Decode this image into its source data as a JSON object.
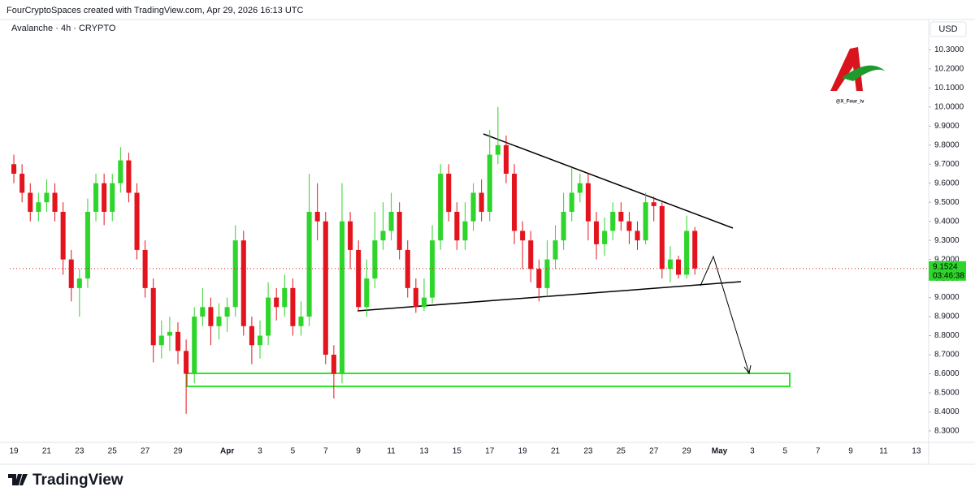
{
  "header": "FourCryptoSpaces created with TradingView.com, Apr 29, 2026 16:13 UTC",
  "watermark": "@X_Four_iv",
  "brand": "TradingView",
  "chart_data": {
    "type": "candlestick",
    "title": "Avalanche · 4h · CRYPTO",
    "currency": "USD",
    "last_price": 9.1524,
    "countdown": "03:46:38",
    "up_color": "#2ed52a",
    "down_color": "#e3141d",
    "grid": false,
    "ylim": [
      8.24,
      10.37
    ],
    "yticks": [
      {
        "value": 8.3,
        "label": "8.3000"
      },
      {
        "value": 8.4,
        "label": "8.4000"
      },
      {
        "value": 8.5,
        "label": "8.5000"
      },
      {
        "value": 8.6,
        "label": "8.6000"
      },
      {
        "value": 8.7,
        "label": "8.7000"
      },
      {
        "value": 8.8,
        "label": "8.8000"
      },
      {
        "value": 8.9,
        "label": "8.9000"
      },
      {
        "value": 9.0,
        "label": "9.0000"
      },
      {
        "value": 9.1,
        "label": "9.1000"
      },
      {
        "value": 9.2,
        "label": "9.2000"
      },
      {
        "value": 9.3,
        "label": "9.3000"
      },
      {
        "value": 9.4,
        "label": "9.4000"
      },
      {
        "value": 9.5,
        "label": "9.5000"
      },
      {
        "value": 9.6,
        "label": "9.6000"
      },
      {
        "value": 9.7,
        "label": "9.7000"
      },
      {
        "value": 9.8,
        "label": "9.8000"
      },
      {
        "value": 9.9,
        "label": "9.9000"
      },
      {
        "value": 10.0,
        "label": "10.0000"
      },
      {
        "value": 10.1,
        "label": "10.1000"
      },
      {
        "value": 10.2,
        "label": "10.2000"
      },
      {
        "value": 10.3,
        "label": "10.3000"
      }
    ],
    "categories": [
      "19",
      null,
      null,
      null,
      "21",
      null,
      null,
      null,
      "23",
      null,
      null,
      null,
      "25",
      null,
      null,
      null,
      "27",
      null,
      null,
      null,
      "29",
      null,
      null,
      null,
      null,
      null,
      "Apr",
      null,
      null,
      null,
      "3",
      null,
      null,
      null,
      "5",
      null,
      null,
      null,
      "7",
      null,
      null,
      null,
      "9",
      null,
      null,
      null,
      "11",
      null,
      null,
      null,
      "13",
      null,
      null,
      null,
      "15",
      null,
      null,
      null,
      "17",
      null,
      null,
      null,
      "19",
      null,
      null,
      null,
      "21",
      null,
      null,
      null,
      "23",
      null,
      null,
      null,
      "25",
      null,
      null,
      null,
      "27",
      null,
      null,
      null,
      "29",
      null,
      null,
      null,
      "May",
      null,
      null,
      null,
      "3",
      null,
      null,
      null,
      "5",
      null,
      null,
      null,
      "7",
      null,
      null,
      null,
      "9",
      null,
      null,
      null,
      "11",
      null,
      null,
      null,
      "13",
      null
    ],
    "open": [
      9.7,
      9.65,
      9.55,
      9.45,
      9.5,
      9.55,
      9.45,
      9.2,
      9.05,
      9.1,
      9.45,
      9.6,
      9.45,
      9.6,
      9.72,
      9.55,
      9.25,
      9.05,
      8.75,
      8.8,
      8.82,
      8.72,
      8.6,
      8.9,
      8.95,
      8.85,
      8.9,
      8.95,
      9.3,
      8.85,
      8.75,
      8.8,
      9.0,
      8.95,
      9.05,
      8.85,
      8.9,
      9.45,
      9.4,
      8.7,
      8.6,
      9.4,
      9.25,
      8.95,
      9.1,
      9.3,
      9.35,
      9.45,
      9.25,
      9.05,
      8.95,
      9.0,
      9.3,
      9.65,
      9.45,
      9.3,
      9.4,
      9.55,
      9.45,
      9.75,
      9.8,
      9.65,
      9.35,
      9.3,
      9.15,
      9.05,
      9.2,
      9.3,
      9.45,
      9.55,
      9.6,
      9.4,
      9.28,
      9.35,
      9.45,
      9.4,
      9.35,
      9.3,
      9.5,
      9.48,
      9.15,
      9.2,
      9.12,
      9.35,
      null,
      null,
      null,
      null,
      null,
      null,
      null,
      null,
      null,
      null,
      null,
      null,
      null,
      null,
      null,
      null,
      null,
      null,
      null,
      null,
      null,
      null,
      null,
      null,
      null,
      null,
      null,
      null
    ],
    "high": [
      9.75,
      9.7,
      9.6,
      9.55,
      9.62,
      9.6,
      9.5,
      9.25,
      9.15,
      9.52,
      9.65,
      9.65,
      9.65,
      9.79,
      9.76,
      9.6,
      9.3,
      9.1,
      8.88,
      8.9,
      8.87,
      8.78,
      8.95,
      9.05,
      9.0,
      8.97,
      9.0,
      9.38,
      9.35,
      8.9,
      8.88,
      9.08,
      9.05,
      9.12,
      9.1,
      8.98,
      9.65,
      9.6,
      9.45,
      8.75,
      9.6,
      9.45,
      9.3,
      9.2,
      9.45,
      9.5,
      9.55,
      9.5,
      9.3,
      9.1,
      9.1,
      9.38,
      9.7,
      9.7,
      9.5,
      9.5,
      9.6,
      9.62,
      9.88,
      10.0,
      9.85,
      9.7,
      9.4,
      9.35,
      9.2,
      9.3,
      9.38,
      9.55,
      9.68,
      9.65,
      9.65,
      9.45,
      9.42,
      9.5,
      9.5,
      9.45,
      9.4,
      9.55,
      9.53,
      9.5,
      9.27,
      9.22,
      9.43,
      9.37,
      null,
      null,
      null,
      null,
      null,
      null,
      null,
      null,
      null,
      null,
      null,
      null,
      null,
      null,
      null,
      null,
      null,
      null,
      null,
      null,
      null,
      null,
      null,
      null,
      null,
      null,
      null,
      null
    ],
    "low": [
      9.6,
      9.5,
      9.4,
      9.4,
      9.45,
      9.4,
      9.12,
      8.98,
      8.9,
      9.05,
      9.4,
      9.38,
      9.4,
      9.55,
      9.5,
      9.2,
      9.0,
      8.66,
      8.68,
      8.72,
      8.65,
      8.39,
      8.55,
      8.85,
      8.75,
      8.78,
      8.82,
      8.9,
      8.8,
      8.65,
      8.68,
      8.75,
      8.88,
      8.9,
      8.8,
      8.8,
      8.85,
      9.3,
      8.65,
      8.47,
      8.55,
      9.15,
      8.93,
      8.9,
      9.05,
      9.25,
      9.3,
      9.2,
      9.0,
      8.92,
      8.93,
      8.97,
      9.25,
      9.4,
      9.25,
      9.25,
      9.35,
      9.4,
      9.4,
      9.7,
      9.6,
      9.28,
      9.15,
      9.08,
      8.98,
      9.0,
      9.15,
      9.25,
      9.4,
      9.5,
      9.3,
      9.2,
      9.22,
      9.3,
      9.35,
      9.28,
      9.25,
      9.28,
      9.4,
      9.1,
      9.08,
      9.1,
      9.1,
      9.12,
      null,
      null,
      null,
      null,
      null,
      null,
      null,
      null,
      null,
      null,
      null,
      null,
      null,
      null,
      null,
      null,
      null,
      null,
      null,
      null,
      null,
      null,
      null,
      null,
      null,
      null,
      null,
      null
    ],
    "close": [
      9.65,
      9.55,
      9.45,
      9.5,
      9.55,
      9.45,
      9.2,
      9.05,
      9.1,
      9.45,
      9.6,
      9.45,
      9.6,
      9.72,
      9.55,
      9.25,
      9.05,
      8.75,
      8.8,
      8.82,
      8.72,
      8.6,
      8.9,
      8.95,
      8.85,
      8.9,
      8.95,
      9.3,
      8.85,
      8.75,
      8.8,
      9.0,
      8.95,
      9.05,
      8.85,
      8.9,
      9.45,
      9.4,
      8.7,
      8.6,
      9.4,
      9.25,
      8.95,
      9.1,
      9.3,
      9.35,
      9.45,
      9.25,
      9.05,
      8.95,
      9.0,
      9.3,
      9.65,
      9.45,
      9.3,
      9.4,
      9.55,
      9.45,
      9.75,
      9.8,
      9.65,
      9.35,
      9.3,
      9.15,
      9.05,
      9.2,
      9.3,
      9.45,
      9.55,
      9.6,
      9.4,
      9.28,
      9.35,
      9.45,
      9.4,
      9.35,
      9.3,
      9.5,
      9.48,
      9.15,
      9.2,
      9.12,
      9.35,
      9.1524,
      null,
      null,
      null,
      null,
      null,
      null,
      null,
      null,
      null,
      null,
      null,
      null,
      null,
      null,
      null,
      null,
      null,
      null,
      null,
      null,
      null,
      null,
      null,
      null,
      null,
      null,
      null,
      null
    ]
  }
}
